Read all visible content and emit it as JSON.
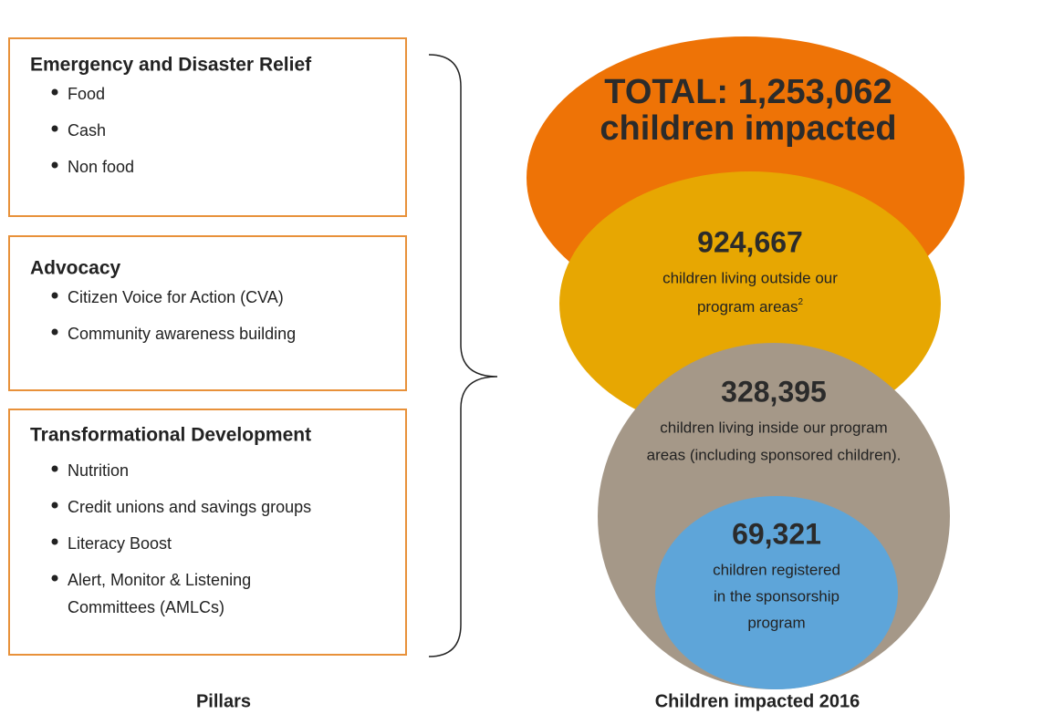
{
  "pillars": [
    {
      "title": "Emergency and Disaster Relief",
      "items": [
        "Food",
        "Cash",
        "Non food"
      ]
    },
    {
      "title": "Advocacy",
      "items": [
        "Citizen Voice for Action (CVA)",
        "Community awareness building"
      ]
    },
    {
      "title": "Transformational Development",
      "items": [
        "Nutrition",
        "Credit unions and savings groups",
        "Literacy Boost",
        "Alert, Monitor & Listening",
        "Committees (AMLCs)"
      ]
    }
  ],
  "circles": [
    {
      "lines": [
        "TOTAL: 1,253,062",
        "children impacted"
      ]
    },
    {
      "number": "924,667",
      "lines": [
        "children living outside our",
        "program areas"
      ],
      "footnote": "2"
    },
    {
      "number": "328,395",
      "lines": [
        "children living inside our program",
        "areas (including sponsored children)."
      ]
    },
    {
      "number": "69,321",
      "lines": [
        "children registered",
        "in the sponsorship",
        "program"
      ]
    }
  ],
  "labels": {
    "pillars": "Pillars",
    "children": "Children impacted 2016"
  }
}
